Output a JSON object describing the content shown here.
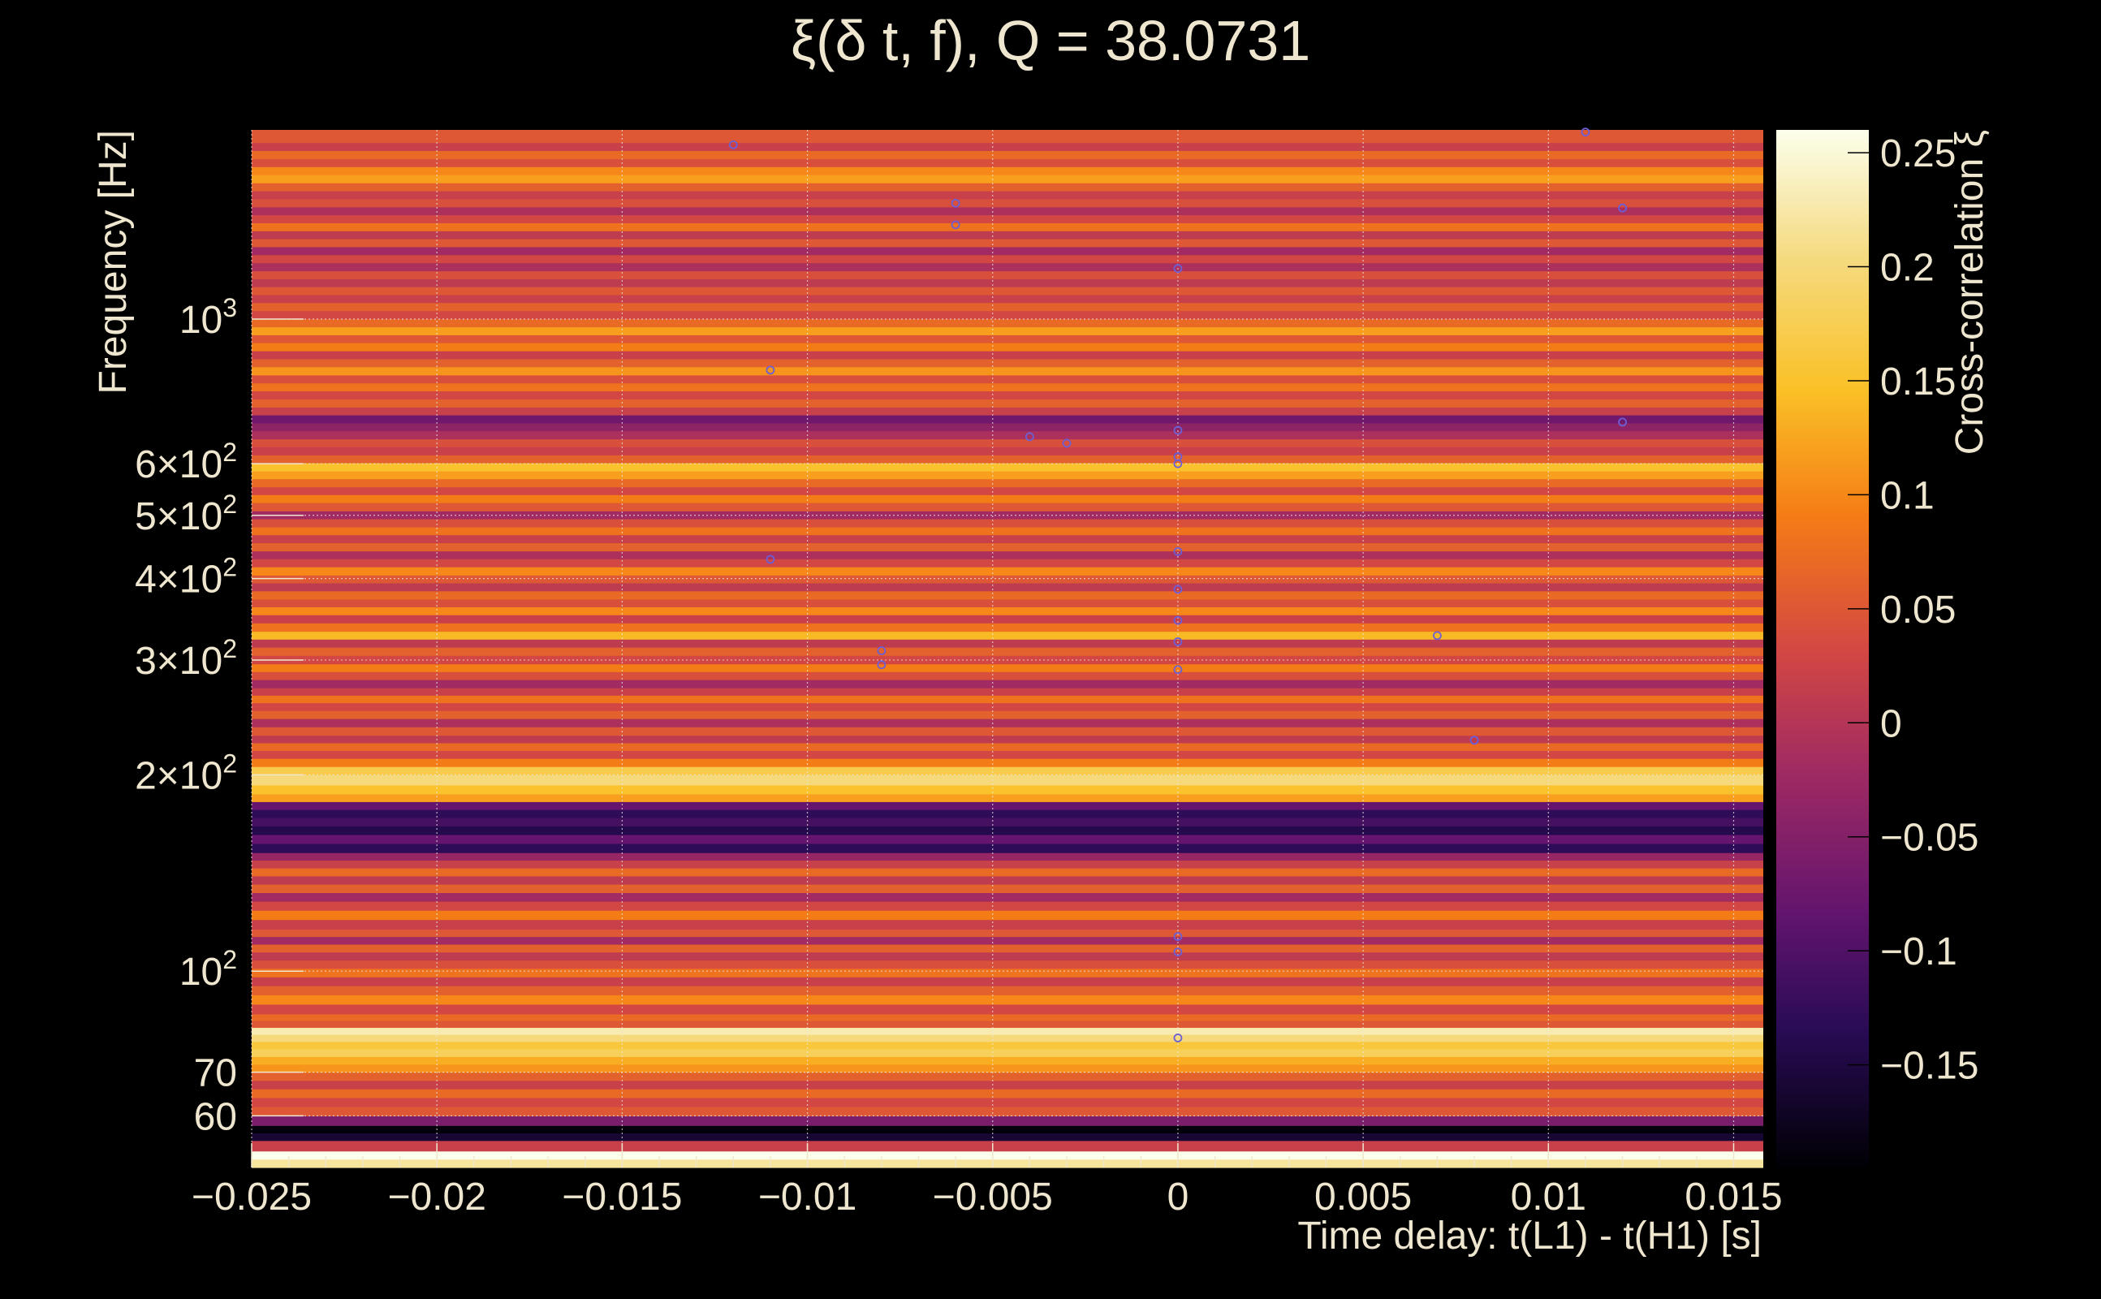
{
  "chart_data": {
    "type": "heatmap",
    "title": "ξ(δ t, f), Q = 38.0731",
    "xlabel": "Time delay: t(L1) - t(H1) [s]",
    "ylabel": "Frequency [Hz]",
    "colorbar_label": "Cross-correlation ξ",
    "x_range": [
      -0.025,
      0.0158
    ],
    "y_range": [
      50,
      1950
    ],
    "y_scale": "log",
    "z_range": [
      -0.195,
      0.26
    ],
    "grid": true,
    "colormap": "inferno",
    "x_ticks": [
      {
        "value": -0.025,
        "label": "−0.025"
      },
      {
        "value": -0.02,
        "label": "−0.02"
      },
      {
        "value": -0.015,
        "label": "−0.015"
      },
      {
        "value": -0.01,
        "label": "−0.01"
      },
      {
        "value": -0.005,
        "label": "−0.005"
      },
      {
        "value": 0,
        "label": "0"
      },
      {
        "value": 0.005,
        "label": "0.005"
      },
      {
        "value": 0.01,
        "label": "0.01"
      },
      {
        "value": 0.015,
        "label": "0.015"
      }
    ],
    "y_ticks": [
      {
        "value": 60,
        "label": "60",
        "sup": ""
      },
      {
        "value": 70,
        "label": "70",
        "sup": ""
      },
      {
        "value": 100,
        "label": "10",
        "sup": "2"
      },
      {
        "value": 200,
        "label": "2×10",
        "sup": "2"
      },
      {
        "value": 300,
        "label": "3×10",
        "sup": "2"
      },
      {
        "value": 400,
        "label": "4×10",
        "sup": "2"
      },
      {
        "value": 500,
        "label": "5×10",
        "sup": "2"
      },
      {
        "value": 600,
        "label": "6×10",
        "sup": "2"
      },
      {
        "value": 1000,
        "label": "10",
        "sup": "3"
      }
    ],
    "colorbar_ticks": [
      {
        "value": 0.25,
        "label": "0.25"
      },
      {
        "value": 0.2,
        "label": "0.2"
      },
      {
        "value": 0.15,
        "label": "0.15"
      },
      {
        "value": 0.1,
        "label": "0.1"
      },
      {
        "value": 0.05,
        "label": "0.05"
      },
      {
        "value": 0,
        "label": "0"
      },
      {
        "value": -0.05,
        "label": "−0.05"
      },
      {
        "value": -0.1,
        "label": "−0.1"
      },
      {
        "value": -0.15,
        "label": "−0.15"
      }
    ],
    "frequency_bands": [
      {
        "f_low": 50,
        "f_high": 51.5,
        "xi": 0.22
      },
      {
        "f_low": 51.5,
        "f_high": 53,
        "xi": 0.26
      },
      {
        "f_low": 53,
        "f_high": 55,
        "xi": 0.02
      },
      {
        "f_low": 55,
        "f_high": 56.5,
        "xi": -0.16
      },
      {
        "f_low": 56.5,
        "f_high": 58,
        "xi": -0.19
      },
      {
        "f_low": 58,
        "f_high": 60,
        "xi": -0.06
      },
      {
        "f_low": 60,
        "f_high": 62,
        "xi": 0.05
      },
      {
        "f_low": 62,
        "f_high": 64,
        "xi": 0.03
      },
      {
        "f_low": 64,
        "f_high": 66,
        "xi": 0.07
      },
      {
        "f_low": 66,
        "f_high": 68,
        "xi": 0.02
      },
      {
        "f_low": 68,
        "f_high": 70,
        "xi": 0.06
      },
      {
        "f_low": 70,
        "f_high": 72,
        "xi": 0.11
      },
      {
        "f_low": 72,
        "f_high": 74,
        "xi": 0.13
      },
      {
        "f_low": 74,
        "f_high": 76,
        "xi": 0.18
      },
      {
        "f_low": 76,
        "f_high": 78,
        "xi": 0.16
      },
      {
        "f_low": 78,
        "f_high": 80,
        "xi": 0.2
      },
      {
        "f_low": 80,
        "f_high": 82,
        "xi": 0.23
      },
      {
        "f_low": 82,
        "f_high": 84,
        "xi": 0.05
      },
      {
        "f_low": 84,
        "f_high": 86,
        "xi": 0.07
      },
      {
        "f_low": 86,
        "f_high": 89,
        "xi": 0.03
      },
      {
        "f_low": 89,
        "f_high": 92,
        "xi": 0.1
      },
      {
        "f_low": 92,
        "f_high": 95,
        "xi": 0.06
      },
      {
        "f_low": 95,
        "f_high": 98,
        "xi": 0.02
      },
      {
        "f_low": 98,
        "f_high": 101,
        "xi": 0.08
      },
      {
        "f_low": 101,
        "f_high": 104,
        "xi": 0.04
      },
      {
        "f_low": 104,
        "f_high": 107,
        "xi": 0.01
      },
      {
        "f_low": 107,
        "f_high": 110,
        "xi": 0.06
      },
      {
        "f_low": 110,
        "f_high": 113,
        "xi": -0.02
      },
      {
        "f_low": 113,
        "f_high": 116,
        "xi": 0.05
      },
      {
        "f_low": 116,
        "f_high": 120,
        "xi": 0.02
      },
      {
        "f_low": 120,
        "f_high": 124,
        "xi": 0.09
      },
      {
        "f_low": 124,
        "f_high": 128,
        "xi": 0.03
      },
      {
        "f_low": 128,
        "f_high": 132,
        "xi": -0.02
      },
      {
        "f_low": 132,
        "f_high": 136,
        "xi": 0.06
      },
      {
        "f_low": 136,
        "f_high": 140,
        "xi": 0.01
      },
      {
        "f_low": 140,
        "f_high": 144,
        "xi": 0.07
      },
      {
        "f_low": 144,
        "f_high": 148,
        "xi": 0.02
      },
      {
        "f_low": 148,
        "f_high": 152,
        "xi": -0.03
      },
      {
        "f_low": 152,
        "f_high": 157,
        "xi": -0.13
      },
      {
        "f_low": 157,
        "f_high": 162,
        "xi": -0.08
      },
      {
        "f_low": 162,
        "f_high": 167,
        "xi": -0.14
      },
      {
        "f_low": 167,
        "f_high": 172,
        "xi": -0.11
      },
      {
        "f_low": 172,
        "f_high": 177,
        "xi": -0.13
      },
      {
        "f_low": 177,
        "f_high": 182,
        "xi": -0.08
      },
      {
        "f_low": 182,
        "f_high": 187,
        "xi": 0.12
      },
      {
        "f_low": 187,
        "f_high": 193,
        "xi": 0.15
      },
      {
        "f_low": 193,
        "f_high": 200,
        "xi": 0.2
      },
      {
        "f_low": 200,
        "f_high": 206,
        "xi": 0.17
      },
      {
        "f_low": 206,
        "f_high": 212,
        "xi": 0.09
      },
      {
        "f_low": 212,
        "f_high": 218,
        "xi": 0.03
      },
      {
        "f_low": 218,
        "f_high": 224,
        "xi": 0.07
      },
      {
        "f_low": 224,
        "f_high": 230,
        "xi": 0.01
      },
      {
        "f_low": 230,
        "f_high": 237,
        "xi": 0.05
      },
      {
        "f_low": 237,
        "f_high": 244,
        "xi": -0.01
      },
      {
        "f_low": 244,
        "f_high": 251,
        "xi": 0.06
      },
      {
        "f_low": 251,
        "f_high": 258,
        "xi": 0.03
      },
      {
        "f_low": 258,
        "f_high": 265,
        "xi": 0.08
      },
      {
        "f_low": 265,
        "f_high": 272,
        "xi": 0.02
      },
      {
        "f_low": 272,
        "f_high": 280,
        "xi": -0.02
      },
      {
        "f_low": 280,
        "f_high": 288,
        "xi": 0.04
      },
      {
        "f_low": 288,
        "f_high": 296,
        "xi": 0.09
      },
      {
        "f_low": 296,
        "f_high": 305,
        "xi": 0.03
      },
      {
        "f_low": 305,
        "f_high": 314,
        "xi": 0.06
      },
      {
        "f_low": 314,
        "f_high": 323,
        "xi": 0.01
      },
      {
        "f_low": 323,
        "f_high": 332,
        "xi": 0.14
      },
      {
        "f_low": 332,
        "f_high": 342,
        "xi": 0.08
      },
      {
        "f_low": 342,
        "f_high": 352,
        "xi": 0.02
      },
      {
        "f_low": 352,
        "f_high": 362,
        "xi": 0.1
      },
      {
        "f_low": 362,
        "f_high": 372,
        "xi": 0.04
      },
      {
        "f_low": 372,
        "f_high": 383,
        "xi": 0.07
      },
      {
        "f_low": 383,
        "f_high": 394,
        "xi": 0.01
      },
      {
        "f_low": 394,
        "f_high": 405,
        "xi": 0.05
      },
      {
        "f_low": 405,
        "f_high": 417,
        "xi": 0.1
      },
      {
        "f_low": 417,
        "f_high": 429,
        "xi": 0.03
      },
      {
        "f_low": 429,
        "f_high": 441,
        "xi": -0.01
      },
      {
        "f_low": 441,
        "f_high": 454,
        "xi": 0.06
      },
      {
        "f_low": 454,
        "f_high": 467,
        "xi": 0.02
      },
      {
        "f_low": 467,
        "f_high": 480,
        "xi": 0.08
      },
      {
        "f_low": 480,
        "f_high": 494,
        "xi": 0.04
      },
      {
        "f_low": 494,
        "f_high": 508,
        "xi": -0.02
      },
      {
        "f_low": 508,
        "f_high": 523,
        "xi": 0.05
      },
      {
        "f_low": 523,
        "f_high": 538,
        "xi": 0.09
      },
      {
        "f_low": 538,
        "f_high": 553,
        "xi": 0.03
      },
      {
        "f_low": 553,
        "f_high": 569,
        "xi": 0.07
      },
      {
        "f_low": 569,
        "f_high": 585,
        "xi": 0.12
      },
      {
        "f_low": 585,
        "f_high": 602,
        "xi": 0.15
      },
      {
        "f_low": 602,
        "f_high": 619,
        "xi": 0.06
      },
      {
        "f_low": 619,
        "f_high": 637,
        "xi": 0.02
      },
      {
        "f_low": 637,
        "f_high": 655,
        "xi": 0.04
      },
      {
        "f_low": 655,
        "f_high": 674,
        "xi": -0.01
      },
      {
        "f_low": 674,
        "f_high": 693,
        "xi": -0.04
      },
      {
        "f_low": 693,
        "f_high": 713,
        "xi": -0.07
      },
      {
        "f_low": 713,
        "f_high": 733,
        "xi": 0.02
      },
      {
        "f_low": 733,
        "f_high": 754,
        "xi": 0.06
      },
      {
        "f_low": 754,
        "f_high": 776,
        "xi": 0.03
      },
      {
        "f_low": 776,
        "f_high": 798,
        "xi": 0.08
      },
      {
        "f_low": 798,
        "f_high": 821,
        "xi": 0.04
      },
      {
        "f_low": 821,
        "f_high": 845,
        "xi": 0.11
      },
      {
        "f_low": 845,
        "f_high": 869,
        "xi": 0.06
      },
      {
        "f_low": 869,
        "f_high": 894,
        "xi": 0.02
      },
      {
        "f_low": 894,
        "f_high": 920,
        "xi": 0.09
      },
      {
        "f_low": 920,
        "f_high": 946,
        "xi": 0.05
      },
      {
        "f_low": 946,
        "f_high": 973,
        "xi": 0.12
      },
      {
        "f_low": 973,
        "f_high": 1001,
        "xi": 0.07
      },
      {
        "f_low": 1001,
        "f_high": 1030,
        "xi": 0.03
      },
      {
        "f_low": 1030,
        "f_high": 1060,
        "xi": 0.06
      },
      {
        "f_low": 1060,
        "f_high": 1090,
        "xi": 0.02
      },
      {
        "f_low": 1090,
        "f_high": 1121,
        "xi": 0.05
      },
      {
        "f_low": 1121,
        "f_high": 1153,
        "xi": 0.01
      },
      {
        "f_low": 1153,
        "f_high": 1186,
        "xi": 0.04
      },
      {
        "f_low": 1186,
        "f_high": 1220,
        "xi": -0.01
      },
      {
        "f_low": 1220,
        "f_high": 1255,
        "xi": 0.03
      },
      {
        "f_low": 1255,
        "f_high": 1291,
        "xi": -0.02
      },
      {
        "f_low": 1291,
        "f_high": 1328,
        "xi": 0.05
      },
      {
        "f_low": 1328,
        "f_high": 1366,
        "xi": 0.01
      },
      {
        "f_low": 1366,
        "f_high": 1405,
        "xi": 0.08
      },
      {
        "f_low": 1405,
        "f_high": 1445,
        "xi": 0.03
      },
      {
        "f_low": 1445,
        "f_high": 1486,
        "xi": -0.01
      },
      {
        "f_low": 1486,
        "f_high": 1529,
        "xi": 0.04
      },
      {
        "f_low": 1529,
        "f_high": 1573,
        "xi": 0.02
      },
      {
        "f_low": 1573,
        "f_high": 1618,
        "xi": 0.06
      },
      {
        "f_low": 1618,
        "f_high": 1665,
        "xi": 0.12
      },
      {
        "f_low": 1665,
        "f_high": 1713,
        "xi": 0.1
      },
      {
        "f_low": 1713,
        "f_high": 1762,
        "xi": 0.04
      },
      {
        "f_low": 1762,
        "f_high": 1813,
        "xi": 0.07
      },
      {
        "f_low": 1813,
        "f_high": 1865,
        "xi": 0.02
      },
      {
        "f_low": 1865,
        "f_high": 1950,
        "xi": 0.05
      }
    ],
    "peak_markers": [
      {
        "x": -0.012,
        "y": 1850
      },
      {
        "x": 0.011,
        "y": 1935
      },
      {
        "x": -0.006,
        "y": 1505
      },
      {
        "x": -0.006,
        "y": 1395
      },
      {
        "x": 0.012,
        "y": 1480
      },
      {
        "x": 0,
        "y": 1195
      },
      {
        "x": -0.011,
        "y": 835
      },
      {
        "x": 0.012,
        "y": 695
      },
      {
        "x": -0.004,
        "y": 660
      },
      {
        "x": -0.003,
        "y": 645
      },
      {
        "x": 0,
        "y": 675
      },
      {
        "x": 0,
        "y": 615
      },
      {
        "x": 0,
        "y": 600
      },
      {
        "x": -0.011,
        "y": 428
      },
      {
        "x": 0,
        "y": 440
      },
      {
        "x": 0,
        "y": 385
      },
      {
        "x": 0,
        "y": 345
      },
      {
        "x": 0,
        "y": 320
      },
      {
        "x": 0.007,
        "y": 327
      },
      {
        "x": -0.008,
        "y": 310
      },
      {
        "x": -0.008,
        "y": 295
      },
      {
        "x": 0,
        "y": 290
      },
      {
        "x": 0.008,
        "y": 226
      },
      {
        "x": 0,
        "y": 113
      },
      {
        "x": 0,
        "y": 107
      },
      {
        "x": 0,
        "y": 79
      }
    ]
  }
}
